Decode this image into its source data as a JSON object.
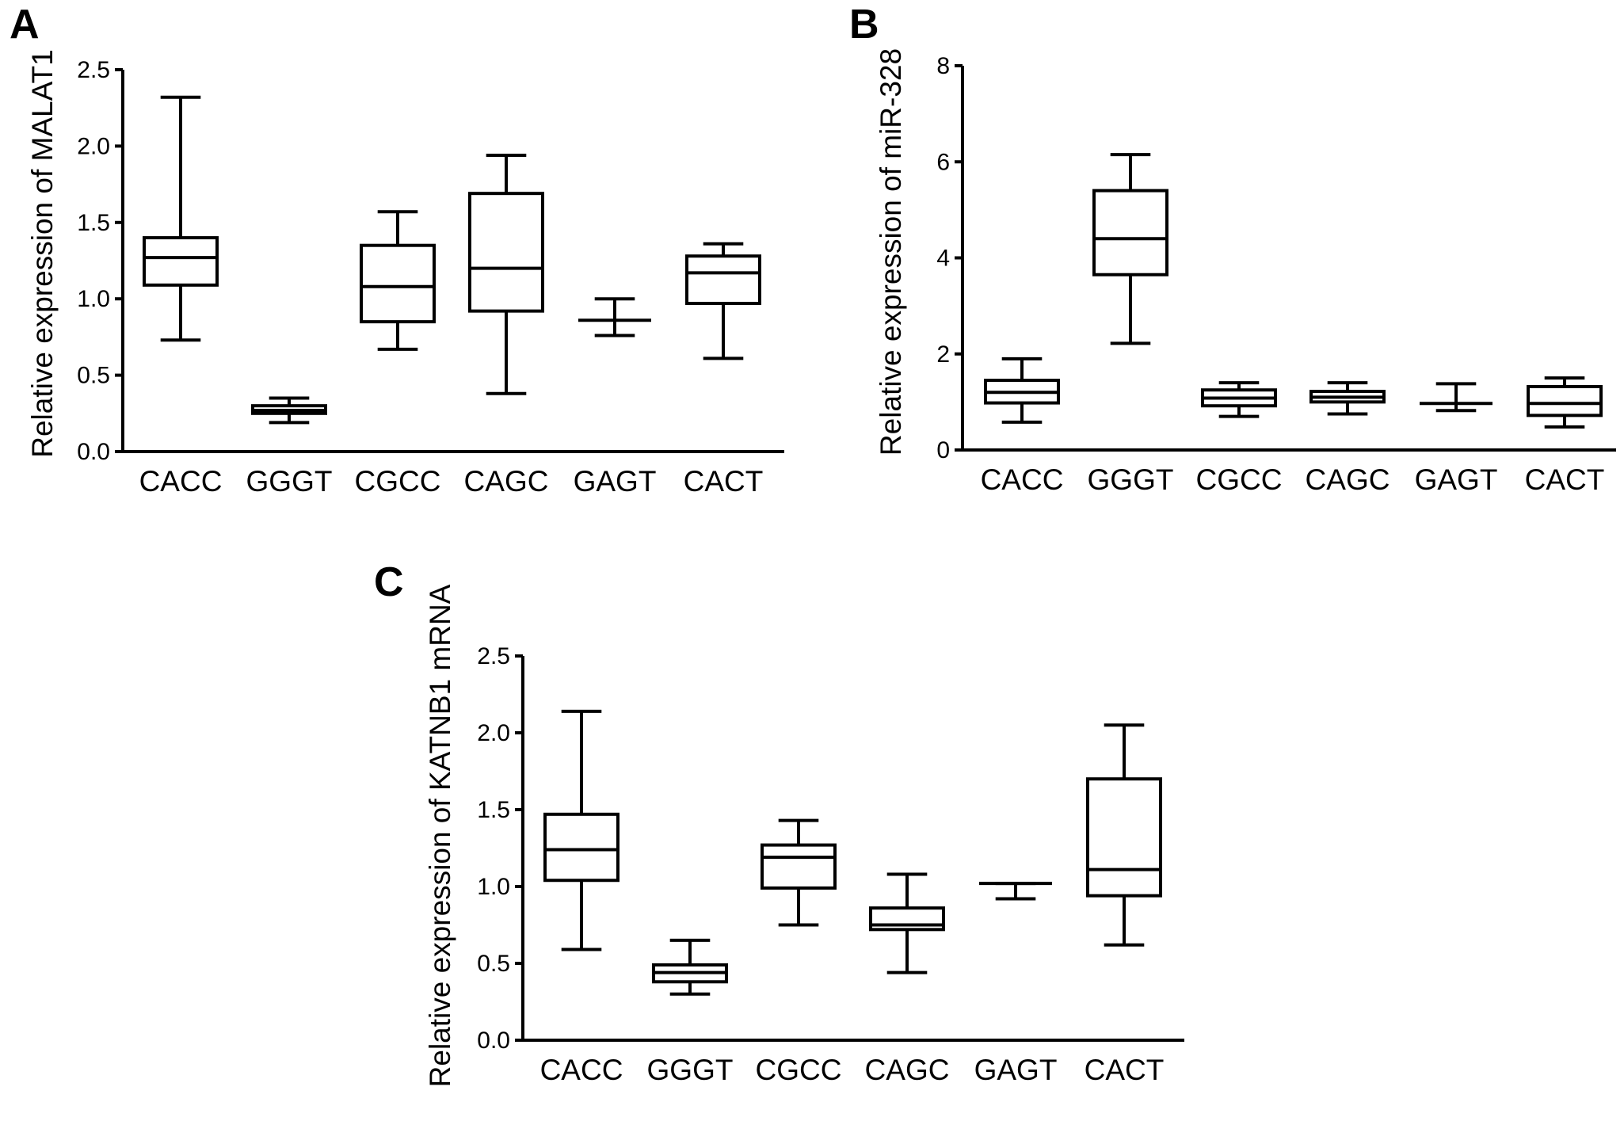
{
  "chart_data": [
    {
      "type": "box",
      "panel": "A",
      "ylabel": "Relative expression of MALAT1",
      "ylim": [
        0,
        2.5
      ],
      "yticks": [
        "0.0",
        "0.5",
        "1.0",
        "1.5",
        "2.0",
        "2.5"
      ],
      "categories": [
        "CACC",
        "GGGT",
        "CGCC",
        "CAGC",
        "GAGT",
        "CACT"
      ],
      "boxes": [
        {
          "min": 0.73,
          "q1": 1.09,
          "median": 1.27,
          "q3": 1.4,
          "max": 2.32
        },
        {
          "min": 0.19,
          "q1": 0.25,
          "median": 0.27,
          "q3": 0.3,
          "max": 0.35
        },
        {
          "min": 0.67,
          "q1": 0.85,
          "median": 1.08,
          "q3": 1.35,
          "max": 1.57
        },
        {
          "min": 0.38,
          "q1": 0.92,
          "median": 1.2,
          "q3": 1.69,
          "max": 1.94
        },
        {
          "min": 0.76,
          "q1": 0.86,
          "median": 0.86,
          "q3": 0.86,
          "max": 1.0
        },
        {
          "min": 0.61,
          "q1": 0.97,
          "median": 1.17,
          "q3": 1.28,
          "max": 1.36
        }
      ]
    },
    {
      "type": "box",
      "panel": "B",
      "ylabel": "Relative expression of miR-328",
      "ylim": [
        0,
        8
      ],
      "yticks": [
        "0",
        "2",
        "4",
        "6",
        "8"
      ],
      "categories": [
        "CACC",
        "GGGT",
        "CGCC",
        "CAGC",
        "GAGT",
        "CACT"
      ],
      "boxes": [
        {
          "min": 0.58,
          "q1": 0.98,
          "median": 1.2,
          "q3": 1.45,
          "max": 1.9
        },
        {
          "min": 2.22,
          "q1": 3.65,
          "median": 4.4,
          "q3": 5.4,
          "max": 6.15
        },
        {
          "min": 0.7,
          "q1": 0.92,
          "median": 1.08,
          "q3": 1.25,
          "max": 1.4
        },
        {
          "min": 0.75,
          "q1": 1.0,
          "median": 1.1,
          "q3": 1.22,
          "max": 1.4
        },
        {
          "min": 0.82,
          "q1": 0.97,
          "median": 0.97,
          "q3": 0.97,
          "max": 1.38
        },
        {
          "min": 0.48,
          "q1": 0.72,
          "median": 0.97,
          "q3": 1.32,
          "max": 1.5
        }
      ]
    },
    {
      "type": "box",
      "panel": "C",
      "ylabel": "Relative expression of KATNB1 mRNA",
      "ylim": [
        0,
        2.5
      ],
      "yticks": [
        "0.0",
        "0.5",
        "1.0",
        "1.5",
        "2.0",
        "2.5"
      ],
      "categories": [
        "CACC",
        "GGGT",
        "CGCC",
        "CAGC",
        "GAGT",
        "CACT"
      ],
      "boxes": [
        {
          "min": 0.59,
          "q1": 1.04,
          "median": 1.24,
          "q3": 1.47,
          "max": 2.14
        },
        {
          "min": 0.3,
          "q1": 0.38,
          "median": 0.44,
          "q3": 0.49,
          "max": 0.65
        },
        {
          "min": 0.75,
          "q1": 0.99,
          "median": 1.19,
          "q3": 1.27,
          "max": 1.43
        },
        {
          "min": 0.44,
          "q1": 0.72,
          "median": 0.75,
          "q3": 0.86,
          "max": 1.08
        },
        {
          "min": 0.92,
          "q1": 1.02,
          "median": 1.02,
          "q3": 1.02,
          "max": 1.02
        },
        {
          "min": 0.62,
          "q1": 0.94,
          "median": 1.11,
          "q3": 1.7,
          "max": 2.05
        }
      ]
    }
  ]
}
